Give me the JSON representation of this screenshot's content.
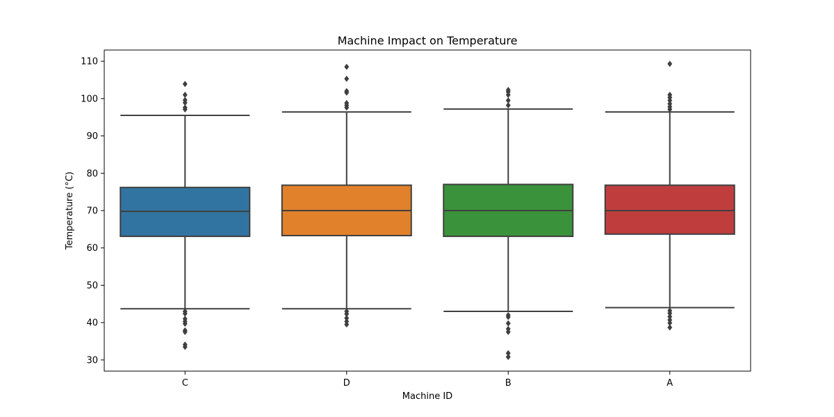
{
  "chart_data": {
    "type": "box",
    "title": "Machine Impact on Temperature",
    "xlabel": "Machine ID",
    "ylabel": "Temperature (°C)",
    "ylim": [
      27,
      113
    ],
    "yticks": [
      30,
      40,
      50,
      60,
      70,
      80,
      90,
      100,
      110
    ],
    "grid": false,
    "categories": [
      "C",
      "D",
      "B",
      "A"
    ],
    "boxes": [
      {
        "name": "C",
        "whisker_low": 43.7,
        "q1": 63.1,
        "median": 69.8,
        "q3": 76.2,
        "whisker_high": 95.5,
        "outliers_low": [
          43.0,
          42.4,
          41.0,
          40.3,
          39.7,
          37.9,
          37.5,
          34.1,
          33.5
        ],
        "outliers_high": [
          97.1,
          97.6,
          98.9,
          99.6,
          101.0,
          103.9
        ],
        "color": "#3274a1"
      },
      {
        "name": "D",
        "whisker_low": 43.7,
        "q1": 63.3,
        "median": 70.0,
        "q3": 76.8,
        "whisker_high": 96.4,
        "outliers_low": [
          43.0,
          42.3,
          41.2,
          40.3,
          39.5
        ],
        "outliers_high": [
          97.6,
          98.2,
          98.8,
          101.6,
          102.0,
          105.3,
          108.5
        ],
        "color": "#e1812c"
      },
      {
        "name": "B",
        "whisker_low": 43.0,
        "q1": 63.1,
        "median": 70.0,
        "q3": 77.0,
        "whisker_high": 97.2,
        "outliers_low": [
          42.0,
          41.5,
          39.8,
          38.3,
          37.5,
          31.8,
          30.8
        ],
        "outliers_high": [
          98.2,
          99.5,
          101.0,
          101.8,
          102.3
        ],
        "color": "#3a923a"
      },
      {
        "name": "A",
        "whisker_low": 44.0,
        "q1": 63.7,
        "median": 70.0,
        "q3": 76.8,
        "whisker_high": 96.4,
        "outliers_low": [
          43.2,
          42.5,
          41.6,
          40.7,
          39.9,
          38.7
        ],
        "outliers_high": [
          97.1,
          97.8,
          98.6,
          99.5,
          100.3,
          101.0,
          109.3
        ],
        "color": "#c03d3e"
      }
    ]
  }
}
